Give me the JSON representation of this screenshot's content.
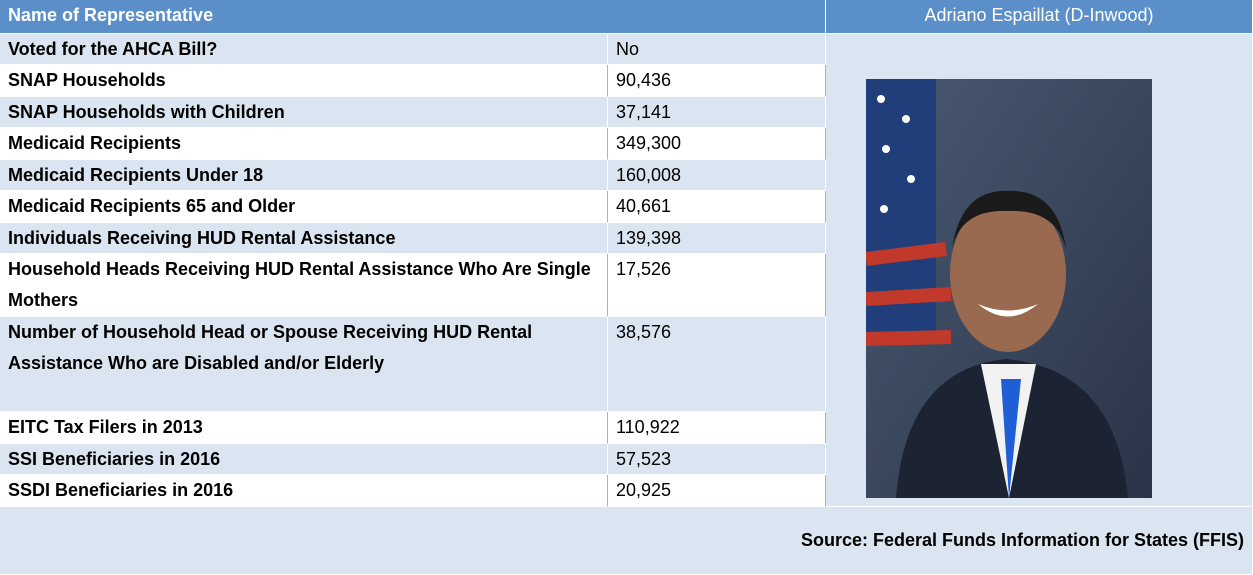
{
  "header": {
    "label": "Name of Representative",
    "name": "Adriano Espaillat (D-Inwood)"
  },
  "table": {
    "rows": [
      [
        "Voted for the AHCA Bill?",
        "No"
      ],
      [
        "SNAP Households",
        "90,436"
      ],
      [
        "SNAP Households with Children",
        "37,141"
      ],
      [
        "Medicaid Recipients",
        "349,300"
      ],
      [
        "Medicaid Recipients Under 18",
        "160,008"
      ],
      [
        "Medicaid Recipients 65 and Older",
        "40,661"
      ],
      [
        "Individuals Receiving HUD Rental Assistance",
        "139,398"
      ],
      [
        "Household Heads Receiving HUD Rental Assistance Who Are Single Mothers",
        "17,526"
      ],
      [
        "Number of Household Head or Spouse Receiving HUD Rental Assistance Who are Disabled and/or Elderly",
        "38,576"
      ],
      [
        "EITC Tax Filers in 2013",
        "110,922"
      ],
      [
        "SSI Beneficiaries in 2016",
        "57,523"
      ],
      [
        "SSDI Beneficiaries in 2016",
        "20,925"
      ]
    ]
  },
  "source": "Source: Federal Funds Information for States (FFIS)"
}
